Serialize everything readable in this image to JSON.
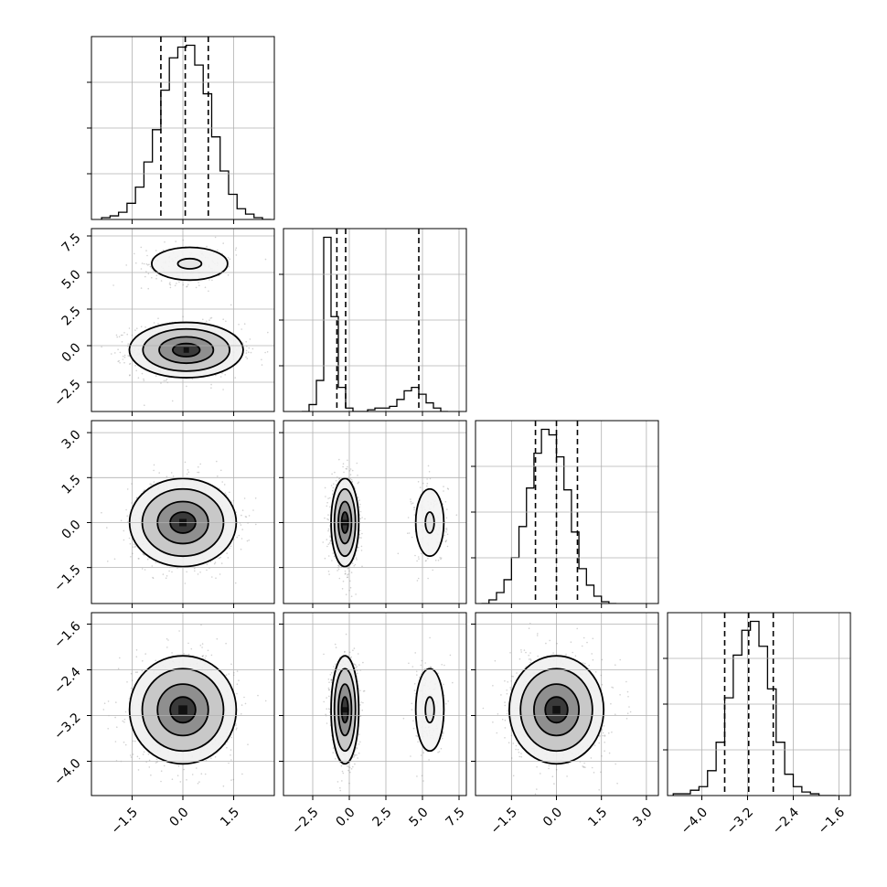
{
  "chart_data": {
    "type": "corner",
    "parameters": 4,
    "axis_ranges": [
      [
        -2.7,
        2.7
      ],
      [
        -4.5,
        8.0
      ],
      [
        -2.7,
        3.4
      ],
      [
        -4.6,
        -1.4
      ]
    ],
    "x_ticks": [
      [
        "−1.5",
        "0.0",
        "1.5"
      ],
      [
        "−2.5",
        "0.0",
        "2.5",
        "5.0",
        "7.5"
      ],
      [
        "−1.5",
        "0.0",
        "1.5",
        "3.0"
      ],
      [
        "−4.0",
        "−3.2",
        "−2.4",
        "−1.6"
      ]
    ],
    "x_tick_values": [
      [
        -1.5,
        0.0,
        1.5
      ],
      [
        -2.5,
        0.0,
        2.5,
        5.0,
        7.5
      ],
      [
        -1.5,
        0.0,
        1.5,
        3.0
      ],
      [
        -4.0,
        -3.2,
        -2.4,
        -1.6
      ]
    ],
    "y_ticks": [
      null,
      [
        "7.5",
        "5.0",
        "2.5",
        "0.0",
        "−2.5"
      ],
      [
        "3.0",
        "1.5",
        "0.0",
        "−1.5"
      ],
      [
        "−1.6",
        "−2.4",
        "−3.2",
        "−4.0"
      ]
    ],
    "y_tick_values": [
      null,
      [
        7.5,
        5.0,
        2.5,
        0.0,
        -2.5
      ],
      [
        3.0,
        1.5,
        0.0,
        -1.5
      ],
      [
        -1.6,
        -2.4,
        -3.2,
        -4.0
      ]
    ],
    "quantiles": [
      [
        -0.65,
        0.07,
        0.75
      ],
      [
        -0.85,
        -0.25,
        4.75
      ],
      [
        -0.7,
        0.0,
        0.7
      ],
      [
        -3.6,
        -3.18,
        -2.75
      ]
    ],
    "histograms": [
      {
        "bin_start": -2.4,
        "bin_width": 0.25,
        "counts": [
          1,
          2,
          4,
          9,
          18,
          32,
          50,
          72,
          90,
          96,
          97,
          86,
          70,
          46,
          27,
          14,
          6,
          3,
          1,
          0
        ]
      },
      {
        "bin_start": -3.25,
        "bin_width": 0.5,
        "counts": [
          0,
          4,
          18,
          101,
          55,
          14,
          2,
          0,
          0,
          1,
          2,
          2,
          3,
          7,
          12,
          14,
          10,
          5,
          2,
          0
        ]
      },
      {
        "bin_start": -2.5,
        "bin_width": 0.25,
        "counts": [
          0,
          2,
          6,
          13,
          25,
          42,
          63,
          82,
          95,
          92,
          80,
          62,
          39,
          19,
          10,
          4,
          1,
          0
        ]
      },
      {
        "bin_start": -4.5,
        "bin_width": 0.15,
        "counts": [
          1,
          1,
          3,
          5,
          14,
          30,
          55,
          79,
          93,
          98,
          84,
          60,
          30,
          12,
          5,
          2,
          1,
          0,
          0
        ]
      }
    ],
    "modes": [
      {
        "row": 1,
        "col": 0,
        "x": 0.1,
        "y": -0.3,
        "sx": 0.8,
        "sy": 0.9
      },
      {
        "row": 1,
        "col": 0,
        "x": 0.2,
        "y": 5.6,
        "sx": 0.7,
        "sy": 0.7,
        "weight": 0.2
      },
      {
        "row": 2,
        "col": 0,
        "x": 0.0,
        "y": 0.0,
        "sx": 0.75,
        "sy": 0.7
      },
      {
        "row": 2,
        "col": 1,
        "x": -0.3,
        "y": 0.0,
        "sx": 0.45,
        "sy": 0.7
      },
      {
        "row": 2,
        "col": 1,
        "x": 5.5,
        "y": 0.0,
        "sx": 0.6,
        "sy": 0.7,
        "weight": 0.2
      },
      {
        "row": 3,
        "col": 0,
        "x": 0.0,
        "y": -3.1,
        "sx": 0.75,
        "sy": 0.45
      },
      {
        "row": 3,
        "col": 1,
        "x": -0.3,
        "y": -3.1,
        "sx": 0.45,
        "sy": 0.45
      },
      {
        "row": 3,
        "col": 1,
        "x": 5.5,
        "y": -3.1,
        "sx": 0.6,
        "sy": 0.45,
        "weight": 0.2
      },
      {
        "row": 3,
        "col": 2,
        "x": 0.0,
        "y": -3.1,
        "sx": 0.75,
        "sy": 0.45
      }
    ],
    "grid": true,
    "legend": "none",
    "title": "",
    "xlabel": "",
    "ylabel": ""
  }
}
